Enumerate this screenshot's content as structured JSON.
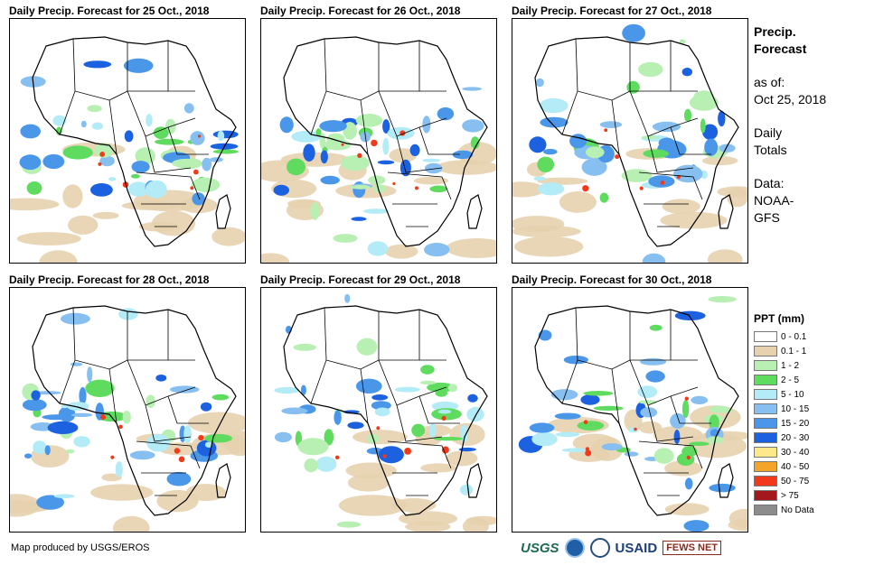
{
  "panels": [
    {
      "title": "Daily Precip. Forecast for 25 Oct., 2018"
    },
    {
      "title": "Daily Precip. Forecast for 26 Oct., 2018"
    },
    {
      "title": "Daily Precip. Forecast for 27 Oct., 2018"
    },
    {
      "title": "Daily Precip. Forecast for 28 Oct., 2018"
    },
    {
      "title": "Daily Precip. Forecast for 29 Oct., 2018"
    },
    {
      "title": "Daily Precip. Forecast for 30 Oct., 2018"
    }
  ],
  "info": {
    "title_line1": "Precip.",
    "title_line2": "Forecast",
    "asof_label": "as of:",
    "asof_date": "Oct 25, 2018",
    "totals_line1": "Daily",
    "totals_line2": "Totals",
    "data_line1": "Data:",
    "data_line2": "NOAA-",
    "data_line3": "GFS"
  },
  "legend": {
    "title": "PPT (mm)",
    "items": [
      {
        "label": "0 - 0.1",
        "color": "#ffffff"
      },
      {
        "label": "0.1 - 1",
        "color": "#e6d2ae"
      },
      {
        "label": "1 - 2",
        "color": "#b7f0b2"
      },
      {
        "label": "2 - 5",
        "color": "#5fdc5f"
      },
      {
        "label": "5 - 10",
        "color": "#b3ecf7"
      },
      {
        "label": "10 - 15",
        "color": "#86bff0"
      },
      {
        "label": "15 - 20",
        "color": "#4a97ea"
      },
      {
        "label": "20 - 30",
        "color": "#1c61e0"
      },
      {
        "label": "30 - 40",
        "color": "#fde88a"
      },
      {
        "label": "40 - 50",
        "color": "#f2a52a"
      },
      {
        "label": "50 - 75",
        "color": "#f23a1a"
      },
      {
        "label": "> 75",
        "color": "#a3181c"
      },
      {
        "label": "No Data",
        "color": "#8c8c8c"
      }
    ]
  },
  "credit": "Map produced by USGS/EROS",
  "logos": {
    "usgs": "USGS",
    "usaid": "USAID",
    "fews": "FEWS NET"
  }
}
